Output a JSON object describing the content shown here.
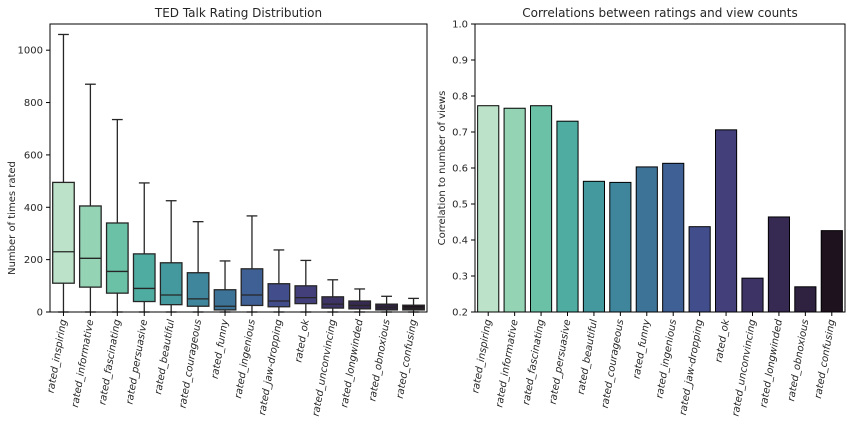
{
  "chart_data": [
    {
      "type": "box",
      "title": "TED Talk Rating Distribution",
      "xlabel": "",
      "ylabel": "Number of times rated",
      "ylim": [
        0,
        1100
      ],
      "yticks": [
        0,
        200,
        400,
        600,
        800,
        1000
      ],
      "categories": [
        "rated_inspiring",
        "rated_informative",
        "rated_fascinating",
        "rated_persuasive",
        "rated_beautiful",
        "rated_courageous",
        "rated_funny",
        "rated_ingenious",
        "rated_jaw-dropping",
        "rated_ok",
        "rated_unconvincing",
        "rated_longwinded",
        "rated_obnoxious",
        "rated_confusing"
      ],
      "boxes": [
        {
          "whisker_low": 0,
          "q1": 110,
          "median": 230,
          "q3": 495,
          "whisker_high": 1060
        },
        {
          "whisker_low": 0,
          "q1": 95,
          "median": 205,
          "q3": 405,
          "whisker_high": 870
        },
        {
          "whisker_low": 0,
          "q1": 72,
          "median": 155,
          "q3": 340,
          "whisker_high": 735
        },
        {
          "whisker_low": 0,
          "q1": 40,
          "median": 90,
          "q3": 222,
          "whisker_high": 493
        },
        {
          "whisker_low": 0,
          "q1": 28,
          "median": 65,
          "q3": 188,
          "whisker_high": 425
        },
        {
          "whisker_low": 0,
          "q1": 22,
          "median": 50,
          "q3": 150,
          "whisker_high": 345
        },
        {
          "whisker_low": 0,
          "q1": 8,
          "median": 22,
          "q3": 85,
          "whisker_high": 195
        },
        {
          "whisker_low": 0,
          "q1": 25,
          "median": 65,
          "q3": 165,
          "whisker_high": 367
        },
        {
          "whisker_low": 0,
          "q1": 20,
          "median": 42,
          "q3": 108,
          "whisker_high": 237
        },
        {
          "whisker_low": 0,
          "q1": 32,
          "median": 55,
          "q3": 100,
          "whisker_high": 197
        },
        {
          "whisker_low": 0,
          "q1": 15,
          "median": 30,
          "q3": 58,
          "whisker_high": 123
        },
        {
          "whisker_low": 0,
          "q1": 12,
          "median": 25,
          "q3": 42,
          "whisker_high": 88
        },
        {
          "whisker_low": 0,
          "q1": 8,
          "median": 18,
          "q3": 30,
          "whisker_high": 60
        },
        {
          "whisker_low": 0,
          "q1": 8,
          "median": 15,
          "q3": 26,
          "whisker_high": 52
        }
      ]
    },
    {
      "type": "bar",
      "title": "Correlations between ratings and view counts",
      "xlabel": "",
      "ylabel": "Correlation to number of views",
      "ylim": [
        0.2,
        1.0
      ],
      "yticks": [
        0.2,
        0.3,
        0.4,
        0.5,
        0.6,
        0.7,
        0.8,
        0.9,
        1.0
      ],
      "categories": [
        "rated_inspiring",
        "rated_informative",
        "rated_fascinating",
        "rated_persuasive",
        "rated_beautiful",
        "rated_courageous",
        "rated_funny",
        "rated_ingenious",
        "rated_jaw-dropping",
        "rated_ok",
        "rated_unconvincing",
        "rated_longwinded",
        "rated_obnoxious",
        "rated_confusing"
      ],
      "values": [
        0.773,
        0.766,
        0.773,
        0.73,
        0.563,
        0.56,
        0.603,
        0.613,
        0.437,
        0.706,
        0.294,
        0.464,
        0.27,
        0.426
      ]
    }
  ],
  "colors": [
    "#bce3c9",
    "#95d3b5",
    "#6ac1a6",
    "#4eaca1",
    "#43999e",
    "#3f859b",
    "#3e7398",
    "#3f6094",
    "#424e8c",
    "#433f7b",
    "#3d3364",
    "#372a52",
    "#2f2240",
    "#1e121e"
  ]
}
